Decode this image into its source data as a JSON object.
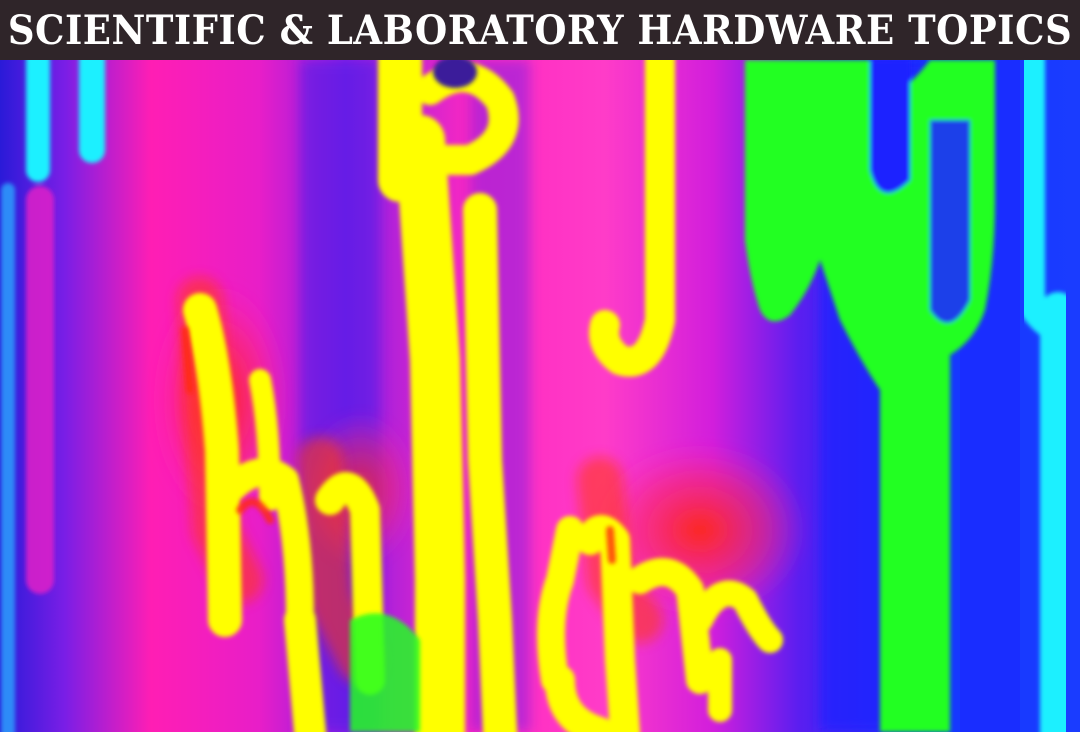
{
  "header": {
    "title": "SCIENTIFIC & LABORATORY HARDWARE TOPICS"
  },
  "image": {
    "kind": "neon thermal drip artwork",
    "colors": {
      "violet": "#7a1ee6",
      "magenta": "#ff1eb4",
      "hot_pink": "#ff3cc8",
      "blue": "#1437ff",
      "cyan": "#1ef0ff",
      "yellow": "#ffff00",
      "orange_red": "#ff2a10",
      "green": "#22ff22"
    }
  }
}
